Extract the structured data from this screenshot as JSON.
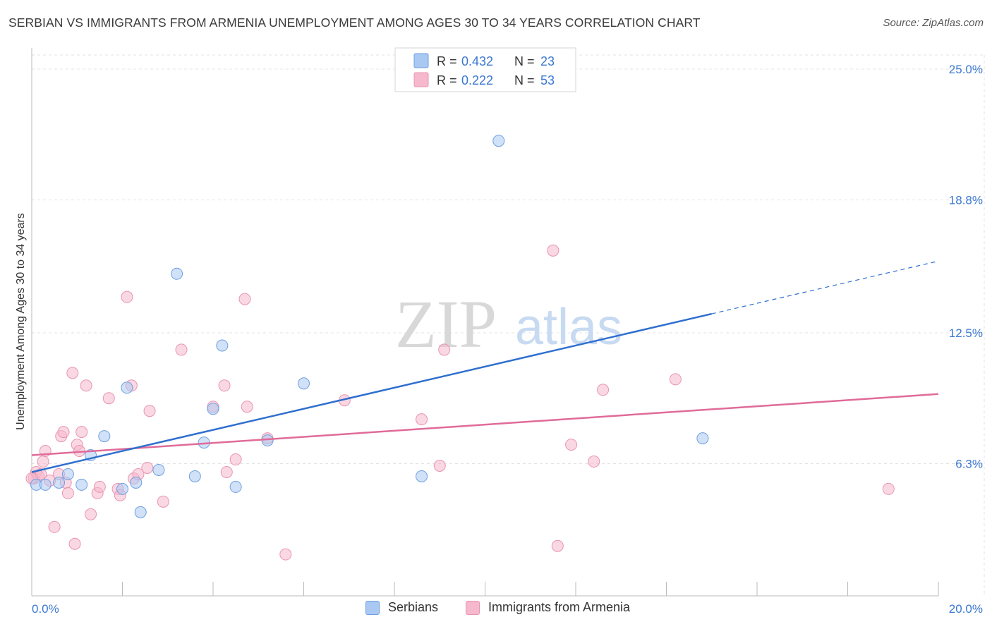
{
  "header": {
    "title": "SERBIAN VS IMMIGRANTS FROM ARMENIA UNEMPLOYMENT AMONG AGES 30 TO 34 YEARS CORRELATION CHART",
    "source": "Source: ZipAtlas.com"
  },
  "watermark": {
    "zip": "ZIP",
    "atlas": "atlas"
  },
  "colors": {
    "blue_fill": "#a9c8f2",
    "blue_stroke": "#6f9fe0",
    "blue_line": "#2f6fcf",
    "pink_fill": "#f6b8cc",
    "pink_stroke": "#e894b0",
    "pink_line": "#e06b98",
    "axis_label": "#3b78d0",
    "grid": "#e3e3e3"
  },
  "legend": {
    "rows": [
      {
        "r_label": "R = ",
        "r_value": "0.432",
        "n_label": "N = ",
        "n_value": "23",
        "swatch": "blue"
      },
      {
        "r_label": "R = ",
        "r_value": "0.222",
        "n_label": "N = ",
        "n_value": "53",
        "swatch": "pink"
      }
    ]
  },
  "bottom_legend": {
    "series1": "Serbians",
    "series2": "Immigrants from Armenia"
  },
  "chart_data": {
    "type": "scatter",
    "title": "SERBIAN VS IMMIGRANTS FROM ARMENIA UNEMPLOYMENT AMONG AGES 30 TO 34 YEARS CORRELATION CHART",
    "xlabel": "",
    "ylabel": "Unemployment Among Ages 30 to 34 years",
    "xlim": [
      0,
      20
    ],
    "ylim": [
      0,
      25
    ],
    "x_tick_labels": [
      "0.0%",
      "20.0%"
    ],
    "y_ticks": [
      6.3,
      12.5,
      18.8,
      25.0
    ],
    "y_tick_labels": [
      "6.3%",
      "12.5%",
      "18.8%",
      "25.0%"
    ],
    "grid": true,
    "legend_position": "top-center",
    "series": [
      {
        "name": "Serbians",
        "color": "blue",
        "r": 0.432,
        "n": 23,
        "points": [
          [
            0.1,
            5.3
          ],
          [
            0.3,
            5.3
          ],
          [
            0.6,
            5.4
          ],
          [
            0.8,
            5.8
          ],
          [
            1.1,
            5.3
          ],
          [
            1.3,
            6.7
          ],
          [
            1.6,
            7.6
          ],
          [
            2.0,
            5.1
          ],
          [
            2.1,
            9.9
          ],
          [
            2.3,
            5.4
          ],
          [
            2.4,
            4.0
          ],
          [
            2.8,
            6.0
          ],
          [
            3.2,
            15.3
          ],
          [
            3.6,
            5.7
          ],
          [
            3.8,
            7.3
          ],
          [
            4.0,
            8.9
          ],
          [
            4.2,
            11.9
          ],
          [
            4.5,
            5.2
          ],
          [
            5.2,
            7.4
          ],
          [
            6.0,
            10.1
          ],
          [
            8.6,
            5.7
          ],
          [
            10.3,
            21.6
          ],
          [
            14.8,
            7.5
          ]
        ],
        "trend": {
          "x1": 0.0,
          "y1": 5.9,
          "x2": 15.0,
          "y2": 13.4,
          "x_dash_end": 20.0,
          "y_dash_end": 15.9
        }
      },
      {
        "name": "Immigrants from Armenia",
        "color": "pink",
        "r": 0.222,
        "n": 53,
        "points": [
          [
            0.05,
            5.6
          ],
          [
            0.1,
            5.9
          ],
          [
            0.15,
            5.7
          ],
          [
            0.2,
            5.8
          ],
          [
            0.25,
            6.4
          ],
          [
            0.3,
            6.9
          ],
          [
            0.4,
            5.5
          ],
          [
            0.5,
            3.3
          ],
          [
            0.6,
            5.8
          ],
          [
            0.65,
            7.6
          ],
          [
            0.7,
            7.8
          ],
          [
            0.75,
            5.4
          ],
          [
            0.8,
            4.9
          ],
          [
            0.9,
            10.6
          ],
          [
            0.95,
            2.5
          ],
          [
            1.0,
            7.2
          ],
          [
            1.05,
            6.9
          ],
          [
            1.1,
            7.8
          ],
          [
            1.2,
            10.0
          ],
          [
            1.3,
            3.9
          ],
          [
            1.45,
            4.9
          ],
          [
            1.5,
            5.2
          ],
          [
            1.7,
            9.4
          ],
          [
            1.9,
            5.1
          ],
          [
            1.95,
            4.8
          ],
          [
            2.1,
            14.2
          ],
          [
            2.2,
            10.0
          ],
          [
            2.25,
            5.6
          ],
          [
            2.35,
            5.8
          ],
          [
            2.6,
            8.8
          ],
          [
            2.55,
            6.1
          ],
          [
            2.9,
            4.5
          ],
          [
            3.3,
            11.7
          ],
          [
            4.0,
            9.0
          ],
          [
            4.3,
            5.9
          ],
          [
            4.25,
            10.0
          ],
          [
            4.5,
            6.5
          ],
          [
            4.75,
            9.0
          ],
          [
            4.7,
            14.1
          ],
          [
            5.2,
            7.5
          ],
          [
            5.6,
            2.0
          ],
          [
            6.9,
            9.3
          ],
          [
            8.6,
            8.4
          ],
          [
            9.0,
            6.2
          ],
          [
            9.1,
            11.7
          ],
          [
            11.5,
            16.4
          ],
          [
            11.6,
            2.4
          ],
          [
            11.9,
            7.2
          ],
          [
            12.4,
            6.4
          ],
          [
            12.6,
            9.8
          ],
          [
            14.2,
            10.3
          ],
          [
            18.9,
            5.1
          ],
          [
            0.0,
            5.6
          ]
        ],
        "trend": {
          "x1": 0.0,
          "y1": 6.7,
          "x2": 20.0,
          "y2": 9.6
        }
      }
    ]
  }
}
